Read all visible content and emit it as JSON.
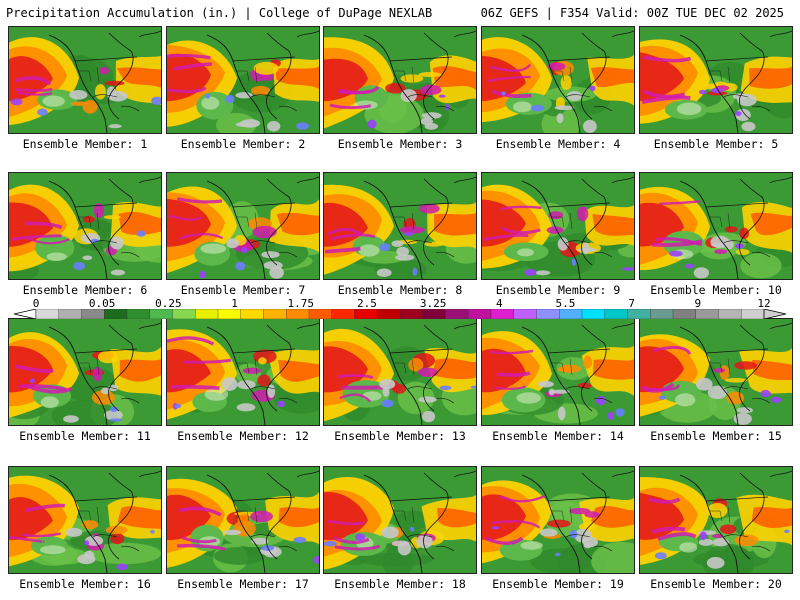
{
  "header": {
    "title": "Precipitation Accumulation (in.) | College of DuPage NEXLAB",
    "valid": "06Z GEFS | F354 Valid: 00Z TUE DEC 02 2025"
  },
  "colorbar": {
    "labels": [
      "0",
      "0.05",
      "0.25",
      "1",
      "1.75",
      "2.5",
      "3.25",
      "4",
      "5.5",
      "7",
      "9",
      "12"
    ],
    "colors": [
      "#d9d9d9",
      "#b0b0b0",
      "#8a8a8a",
      "#1d6b1d",
      "#2f8f2f",
      "#4fb84f",
      "#85d94f",
      "#e8f000",
      "#fffa00",
      "#ffd900",
      "#ffb300",
      "#ff8c00",
      "#ff5a00",
      "#ff2600",
      "#e60000",
      "#c00000",
      "#a00020",
      "#80003a",
      "#9b0f74",
      "#c010a0",
      "#e020d0",
      "#c060ff",
      "#8f8fff",
      "#50b0ff",
      "#00e0ff",
      "#00c8c8",
      "#40b0a0",
      "#6a9a90",
      "#808080",
      "#9a9a9a",
      "#b5b5b5",
      "#cfcfcf"
    ]
  },
  "members": [
    {
      "label": "Ensemble Member: 1"
    },
    {
      "label": "Ensemble Member: 2"
    },
    {
      "label": "Ensemble Member: 3"
    },
    {
      "label": "Ensemble Member: 4"
    },
    {
      "label": "Ensemble Member: 5"
    },
    {
      "label": "Ensemble Member: 6"
    },
    {
      "label": "Ensemble Member: 7"
    },
    {
      "label": "Ensemble Member: 8"
    },
    {
      "label": "Ensemble Member: 9"
    },
    {
      "label": "Ensemble Member: 10"
    },
    {
      "label": "Ensemble Member: 11"
    },
    {
      "label": "Ensemble Member: 12"
    },
    {
      "label": "Ensemble Member: 13"
    },
    {
      "label": "Ensemble Member: 14"
    },
    {
      "label": "Ensemble Member: 15"
    },
    {
      "label": "Ensemble Member: 16"
    },
    {
      "label": "Ensemble Member: 17"
    },
    {
      "label": "Ensemble Member: 18"
    },
    {
      "label": "Ensemble Member: 19"
    },
    {
      "label": "Ensemble Member: 20"
    }
  ]
}
